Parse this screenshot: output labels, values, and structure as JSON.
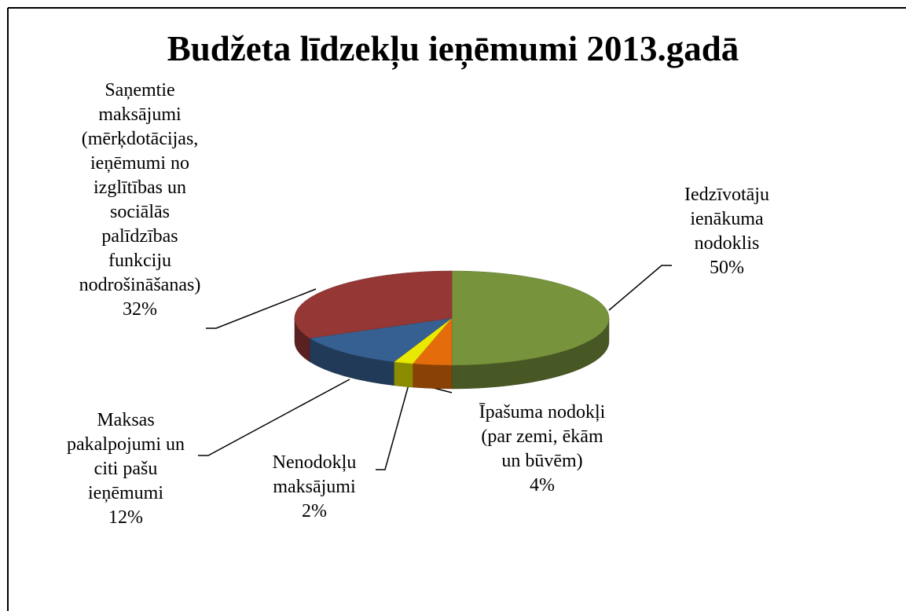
{
  "chart_data": {
    "type": "pie",
    "title": "Budžeta līdzekļu ieņēmumi 2013.gadā",
    "categories": [
      "Iedzīvotāju\nienākuma\nnodoklis",
      "Īpašuma nodokļi\n(par zemi, ēkām\nun būvēm)",
      "Nenodokļu\nmaksājumi",
      "Maksas\npakalpojumi un\nciti pašu\nieņēmumi",
      "Saņemtie\nmaksājumi\n(mērķdotācijas,\nieņēmumi no\nizglītības un\nsociālās\npalīdzības\nfunkciju\nnodrošināšanas)"
    ],
    "values": [
      50,
      4,
      2,
      12,
      32
    ],
    "value_labels": [
      "50%",
      "4%",
      "2%",
      "12%",
      "32%"
    ],
    "colors": [
      "#77933c",
      "#e46c0a",
      "#e8e800",
      "#376092",
      "#953735"
    ]
  }
}
